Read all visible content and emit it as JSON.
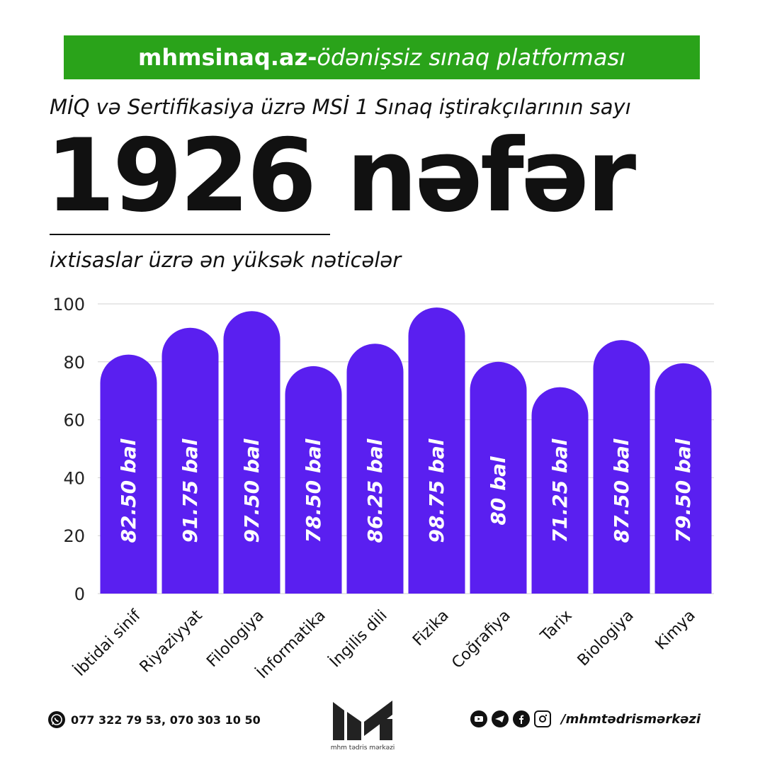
{
  "banner": {
    "site": "mhmsinaq.az-",
    "tagline": "ödənişsiz sınaq platforması",
    "color": "#2aa31a"
  },
  "subtitle": "MİQ və Sertifikasiya üzrə MSİ 1 Sınaq iştirakçılarının sayı",
  "headline": "1926 nəfər",
  "caption": "ixtisaslar üzrə ən yüksək nəticələr",
  "chart_data": {
    "type": "bar",
    "categories": [
      "İbtidai sinif",
      "Riyaziyyat",
      "Filologiya",
      "İnformatika",
      "İngilis dili",
      "Fizika",
      "Coğrafiya",
      "Tarix",
      "Biologiya",
      "Kimya"
    ],
    "values": [
      82.5,
      91.75,
      97.5,
      78.5,
      86.25,
      98.75,
      80,
      71.25,
      87.5,
      79.5
    ],
    "data_labels": [
      "82.50 bal",
      "91.75 bal",
      "97.50 bal",
      "78.50 bal",
      "86.25 bal",
      "98.75 bal",
      "80 bal",
      "71.25 bal",
      "87.50 bal",
      "79.50 bal"
    ],
    "ylim": [
      0,
      100
    ],
    "yticks": [
      0,
      20,
      40,
      60,
      80,
      100
    ],
    "grid": true,
    "bar_color": "#5a1ff0",
    "grid_color": "#d0d0d0"
  },
  "footer": {
    "phones": "077 322 79 53, 070 303 10 50",
    "logo_name": "mhm tədris mərkəzi",
    "social_icons": [
      "youtube-icon",
      "telegram-icon",
      "facebook-icon",
      "instagram-icon"
    ],
    "handle": "/mhmtədrismərkəzi"
  }
}
